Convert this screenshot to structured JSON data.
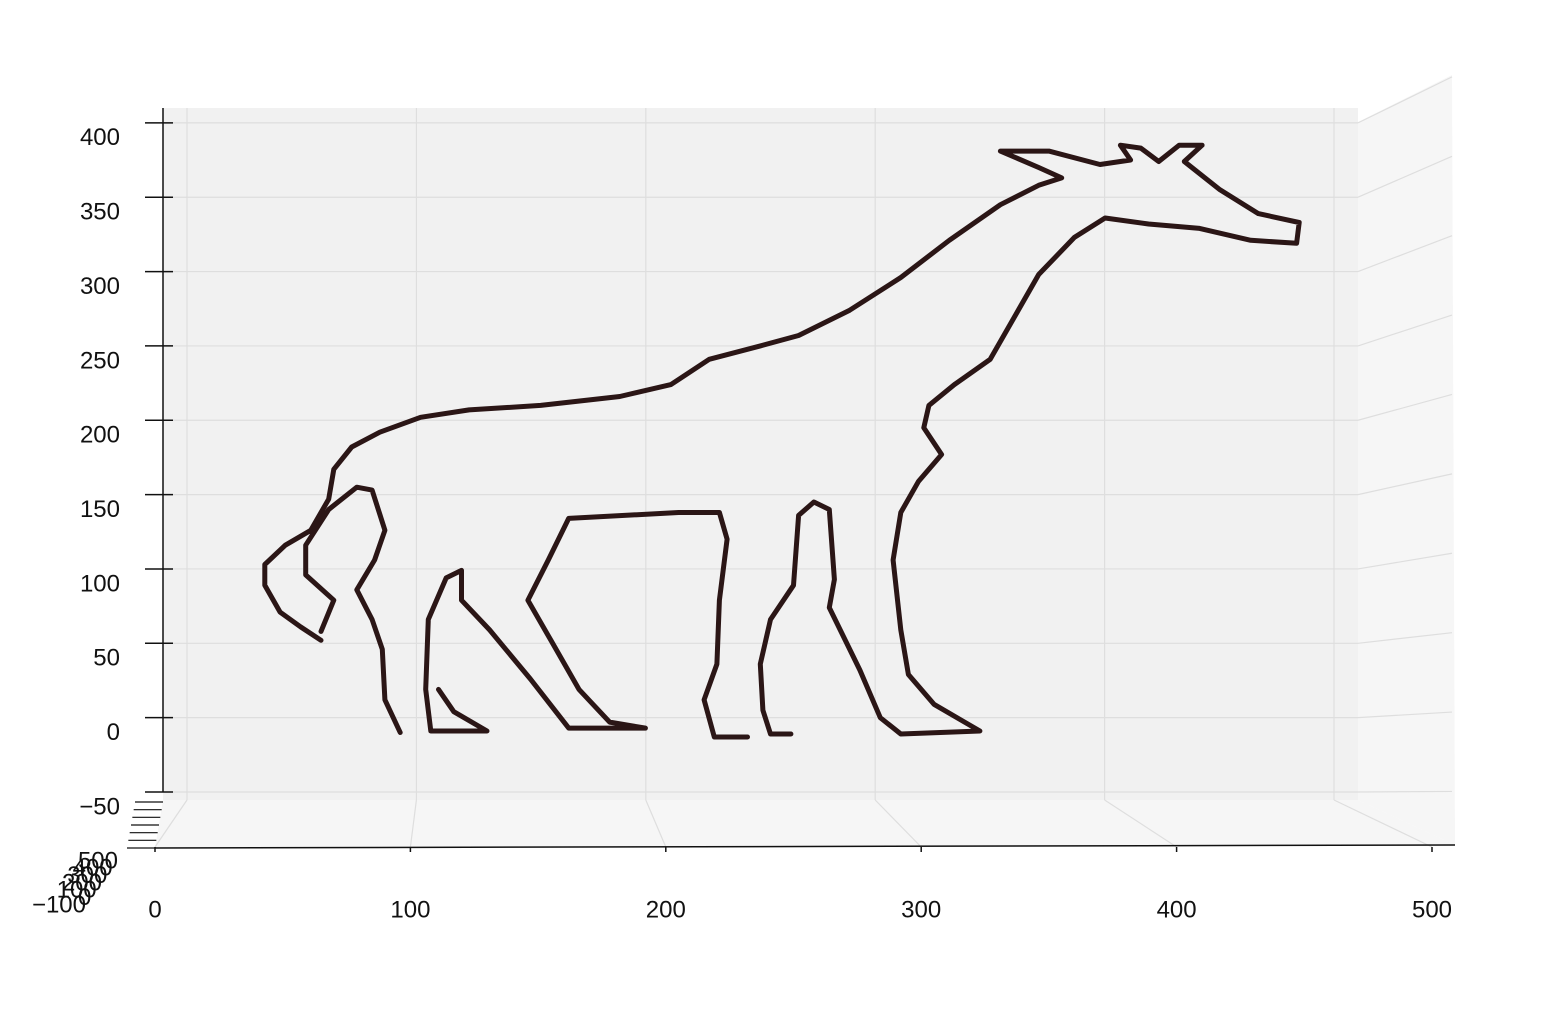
{
  "chart_data": {
    "type": "scatter3d",
    "x": [
      65,
      57,
      49,
      43,
      43,
      51,
      61,
      68,
      70,
      77,
      88,
      104,
      123,
      151,
      182,
      202,
      217,
      237,
      252,
      272,
      292,
      311,
      331,
      346,
      355,
      346,
      331,
      350,
      370,
      382,
      378,
      386,
      393,
      401,
      410,
      403,
      417,
      432,
      448,
      447,
      429,
      409,
      389,
      372,
      360,
      346,
      337,
      327,
      313,
      303,
      301,
      308,
      299,
      292,
      289,
      292,
      295,
      305,
      317,
      323,
      292,
      284,
      276,
      264,
      266,
      264,
      258,
      252,
      250,
      241,
      237,
      238,
      241,
      249,
      null,
      232,
      219,
      215,
      220,
      221,
      224,
      221,
      205,
      162,
      154,
      146,
      155,
      166,
      178,
      192,
      162,
      147,
      131,
      120,
      120,
      114,
      107,
      106,
      108,
      130,
      117,
      111,
      null,
      96,
      90,
      89,
      85,
      79,
      86,
      90,
      85,
      79,
      68,
      59,
      59,
      70,
      65
    ],
    "values": [
      52,
      61,
      71,
      89,
      103,
      116,
      126,
      147,
      167,
      182,
      192,
      202,
      207,
      210,
      216,
      224,
      241,
      250,
      257,
      274,
      296,
      321,
      345,
      358,
      363,
      370,
      381,
      381,
      372,
      375,
      385,
      383,
      374,
      385,
      385,
      374,
      355,
      339,
      333,
      319,
      321,
      329,
      332,
      336,
      323,
      298,
      271,
      241,
      224,
      210,
      195,
      177,
      159,
      138,
      106,
      59,
      29,
      9,
      -3,
      -9,
      -11,
      0,
      32,
      74,
      93,
      140,
      145,
      136,
      89,
      66,
      36,
      5,
      -11,
      -11,
      null,
      -13,
      -13,
      12,
      36,
      79,
      120,
      138,
      138,
      134,
      106,
      79,
      52,
      19,
      -3,
      -7,
      -7,
      26,
      59,
      79,
      99,
      94,
      66,
      19,
      -9,
      -9,
      4,
      19,
      null,
      -10,
      12,
      46,
      66,
      86,
      106,
      126,
      153,
      155,
      140,
      116,
      96,
      79,
      58
    ],
    "color": "#2b1616",
    "xlim": [
      0,
      500
    ],
    "ylim": [
      -50,
      410
    ],
    "zlim": [
      -100,
      500
    ],
    "xticks": [
      0,
      100,
      200,
      300,
      400,
      500
    ],
    "yticks": [
      {
        "value": -50,
        "label": "−50"
      },
      0,
      50,
      100,
      150,
      200,
      250,
      300,
      350,
      400
    ],
    "zticks": [
      {
        "value": -100,
        "label": "−100"
      },
      0,
      100,
      200,
      300,
      400,
      500
    ],
    "grid": true
  }
}
